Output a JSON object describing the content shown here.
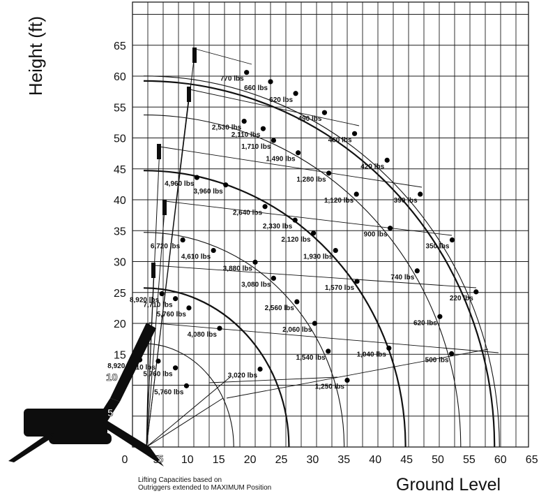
{
  "chart_data": {
    "type": "scatter",
    "title": "",
    "ylabel": "Height (ft)",
    "xlabel": "Ground Level",
    "xlim": [
      0,
      65
    ],
    "ylim": [
      0,
      65
    ],
    "x_ticks": [
      "0",
      "5",
      "10",
      "15",
      "20",
      "25",
      "30",
      "35",
      "40",
      "45",
      "50",
      "55",
      "60",
      "65"
    ],
    "y_ticks": [
      "15",
      "20",
      "25",
      "30",
      "35",
      "40",
      "45",
      "50",
      "55",
      "60",
      "65"
    ],
    "grid": true,
    "boom_marks": [
      "5",
      "10"
    ],
    "radius_ticks": [
      "5"
    ],
    "footnote": [
      "Lifting Capacities based on",
      "Outriggers extended to MAXIMUM Position"
    ],
    "arcs": [
      {
        "radius": 16.5
      },
      {
        "radius": 25.5
      },
      {
        "radius": 34.5
      },
      {
        "radius": 44.5
      },
      {
        "radius": 53.5
      },
      {
        "radius": 59.0
      },
      {
        "radius": 59.8
      }
    ],
    "points": [
      {
        "label": "770 lbs",
        "x": 18.6,
        "y": 60.6
      },
      {
        "label": "660 lbs",
        "x": 22.5,
        "y": 59.1
      },
      {
        "label": "620 lbs",
        "x": 26.6,
        "y": 57.2
      },
      {
        "label": "490 lbs",
        "x": 31.3,
        "y": 54.1
      },
      {
        "label": "460 lbs",
        "x": 36.2,
        "y": 50.7
      },
      {
        "label": "420 lbs",
        "x": 41.5,
        "y": 46.4
      },
      {
        "label": "390 lbs",
        "x": 46.9,
        "y": 40.9
      },
      {
        "label": "350 lbs",
        "x": 52.1,
        "y": 33.5
      },
      {
        "label": "220 lbs",
        "x": 56.0,
        "y": 25.1
      },
      {
        "label": "2,530 lbs",
        "x": 18.2,
        "y": 52.7
      },
      {
        "label": "2,110 lbs",
        "x": 21.3,
        "y": 51.5
      },
      {
        "label": "1,710 lbs",
        "x": 23.0,
        "y": 49.6
      },
      {
        "label": "1,490 lbs",
        "x": 27.0,
        "y": 47.6
      },
      {
        "label": "1,280 lbs",
        "x": 32.0,
        "y": 44.3
      },
      {
        "label": "1,120 lbs",
        "x": 36.5,
        "y": 40.9
      },
      {
        "label": "900 lbs",
        "x": 42.0,
        "y": 35.4
      },
      {
        "label": "740 lbs",
        "x": 46.4,
        "y": 28.5
      },
      {
        "label": "620 lbs",
        "x": 50.1,
        "y": 21.1
      },
      {
        "label": "500 lbs",
        "x": 52.0,
        "y": 15.1
      },
      {
        "label": "4,960 lbs",
        "x": 10.5,
        "y": 43.6
      },
      {
        "label": "3,960 lbs",
        "x": 15.2,
        "y": 42.4
      },
      {
        "label": "2,640 lbs",
        "x": 21.6,
        "y": 38.9
      },
      {
        "label": "2,330 lbs",
        "x": 26.5,
        "y": 36.7
      },
      {
        "label": "2,120 lbs",
        "x": 29.5,
        "y": 34.6
      },
      {
        "label": "1,930 lbs",
        "x": 33.1,
        "y": 31.8
      },
      {
        "label": "1,570 lbs",
        "x": 36.6,
        "y": 26.8
      },
      {
        "label": "1,040 lbs",
        "x": 41.8,
        "y": 16.0
      },
      {
        "label": "6,720 lbs",
        "x": 8.2,
        "y": 33.5
      },
      {
        "label": "4,610 lbs",
        "x": 13.2,
        "y": 31.8
      },
      {
        "label": "3,880 lbs",
        "x": 20.0,
        "y": 29.9
      },
      {
        "label": "3,080 lbs",
        "x": 23.0,
        "y": 27.3
      },
      {
        "label": "2,560 lbs",
        "x": 26.8,
        "y": 23.5
      },
      {
        "label": "2,060 lbs",
        "x": 29.7,
        "y": 20.0
      },
      {
        "label": "1,540 lbs",
        "x": 31.9,
        "y": 15.5
      },
      {
        "label": "1,250 lbs",
        "x": 35.0,
        "y": 10.8
      },
      {
        "label": "8,920 lbs",
        "x": 4.8,
        "y": 24.8
      },
      {
        "label": "7,710 lbs",
        "x": 7.0,
        "y": 24.0
      },
      {
        "label": "5,760 lbs",
        "x": 9.2,
        "y": 22.5
      },
      {
        "label": "4,080 lbs",
        "x": 14.2,
        "y": 19.2
      },
      {
        "label": "3,020 lbs",
        "x": 20.8,
        "y": 12.6
      },
      {
        "label": "8,920 lbs",
        "x": 1.2,
        "y": 14.1
      },
      {
        "label": "7,710 lbs",
        "x": 4.2,
        "y": 13.9
      },
      {
        "label": "5,760 lbs",
        "x": 7.0,
        "y": 12.8
      },
      {
        "label": "5,760 lbs",
        "x": 8.8,
        "y": 9.9
      }
    ]
  },
  "colors": {
    "line": "#111111",
    "grid": "#1a1a1a",
    "crane": "#0d0d0d"
  }
}
